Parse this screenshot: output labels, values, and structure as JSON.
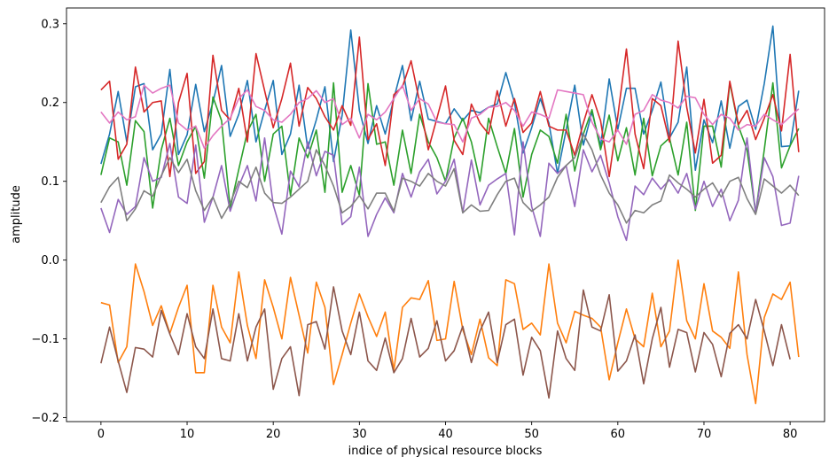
{
  "chart_data": {
    "type": "line",
    "title": "",
    "xlabel": "indice of physical resource blocks",
    "ylabel": "amplitude",
    "xlim": [
      -4,
      84
    ],
    "ylim": [
      -0.205,
      0.32
    ],
    "xticks": [
      0,
      10,
      20,
      30,
      40,
      50,
      60,
      70,
      80
    ],
    "xtick_labels": [
      "0",
      "10",
      "20",
      "30",
      "40",
      "50",
      "60",
      "70",
      "80"
    ],
    "yticks": [
      -0.2,
      -0.1,
      0.0,
      0.1,
      0.2,
      0.3
    ],
    "ytick_labels": [
      "−0.2",
      "−0.1",
      "0.0",
      "0.1",
      "0.2",
      "0.3"
    ],
    "grid": false,
    "legend": false,
    "series": [
      {
        "color": "#1f77b4",
        "values": [
          0.122,
          0.16,
          0.214,
          0.15,
          0.22,
          0.224,
          0.14,
          0.16,
          0.242,
          0.134,
          0.159,
          0.223,
          0.163,
          0.2,
          0.247,
          0.157,
          0.185,
          0.228,
          0.15,
          0.19,
          0.228,
          0.134,
          0.16,
          0.222,
          0.142,
          0.178,
          0.22,
          0.125,
          0.184,
          0.292,
          0.19,
          0.148,
          0.196,
          0.16,
          0.205,
          0.247,
          0.177,
          0.227,
          0.179,
          0.176,
          0.173,
          0.192,
          0.177,
          0.19,
          0.187,
          0.194,
          0.198,
          0.238,
          0.2,
          0.136,
          0.168,
          0.205,
          0.174,
          0.11,
          0.165,
          0.222,
          0.146,
          0.188,
          0.145,
          0.23,
          0.166,
          0.218,
          0.218,
          0.16,
          0.19,
          0.226,
          0.155,
          0.175,
          0.245,
          0.114,
          0.178,
          0.149,
          0.202,
          0.142,
          0.195,
          0.203,
          0.166,
          0.224,
          0.297,
          0.144,
          0.145,
          0.215
        ]
      },
      {
        "color": "#ff7f0e",
        "values": [
          -0.054,
          -0.057,
          -0.13,
          -0.11,
          -0.005,
          -0.04,
          -0.083,
          -0.058,
          -0.093,
          -0.06,
          -0.032,
          -0.143,
          -0.143,
          -0.032,
          -0.085,
          -0.105,
          -0.015,
          -0.083,
          -0.125,
          -0.025,
          -0.06,
          -0.1,
          -0.022,
          -0.07,
          -0.118,
          -0.028,
          -0.06,
          -0.158,
          -0.12,
          -0.08,
          -0.043,
          -0.072,
          -0.097,
          -0.066,
          -0.14,
          -0.06,
          -0.048,
          -0.05,
          -0.026,
          -0.102,
          -0.1,
          -0.027,
          -0.088,
          -0.12,
          -0.075,
          -0.124,
          -0.134,
          -0.025,
          -0.03,
          -0.088,
          -0.08,
          -0.095,
          -0.005,
          -0.08,
          -0.105,
          -0.065,
          -0.07,
          -0.074,
          -0.085,
          -0.152,
          -0.105,
          -0.062,
          -0.1,
          -0.11,
          -0.042,
          -0.11,
          -0.09,
          0.0,
          -0.077,
          -0.1,
          -0.03,
          -0.09,
          -0.098,
          -0.112,
          -0.015,
          -0.12,
          -0.182,
          -0.073,
          -0.043,
          -0.05,
          -0.028,
          -0.123
        ]
      },
      {
        "color": "#2ca02c",
        "values": [
          0.108,
          0.155,
          0.15,
          0.095,
          0.177,
          0.163,
          0.066,
          0.14,
          0.18,
          0.12,
          0.15,
          0.17,
          0.104,
          0.207,
          0.177,
          0.066,
          0.115,
          0.163,
          0.185,
          0.1,
          0.16,
          0.17,
          0.082,
          0.155,
          0.13,
          0.165,
          0.086,
          0.225,
          0.086,
          0.12,
          0.082,
          0.224,
          0.147,
          0.15,
          0.095,
          0.165,
          0.11,
          0.185,
          0.15,
          0.13,
          0.1,
          0.155,
          0.18,
          0.15,
          0.1,
          0.18,
          0.144,
          0.11,
          0.167,
          0.08,
          0.134,
          0.165,
          0.157,
          0.123,
          0.185,
          0.113,
          0.16,
          0.191,
          0.14,
          0.184,
          0.126,
          0.168,
          0.108,
          0.18,
          0.107,
          0.145,
          0.155,
          0.108,
          0.175,
          0.063,
          0.17,
          0.17,
          0.118,
          0.225,
          0.17,
          0.14,
          0.06,
          0.14,
          0.225,
          0.117,
          0.145,
          0.167
        ]
      },
      {
        "color": "#d62728",
        "values": [
          0.216,
          0.227,
          0.128,
          0.147,
          0.245,
          0.188,
          0.2,
          0.202,
          0.106,
          0.2,
          0.237,
          0.11,
          0.125,
          0.26,
          0.19,
          0.178,
          0.218,
          0.15,
          0.262,
          0.215,
          0.168,
          0.205,
          0.25,
          0.17,
          0.219,
          0.205,
          0.182,
          0.165,
          0.196,
          0.171,
          0.283,
          0.153,
          0.173,
          0.12,
          0.21,
          0.22,
          0.253,
          0.2,
          0.14,
          0.18,
          0.221,
          0.152,
          0.134,
          0.198,
          0.174,
          0.16,
          0.215,
          0.17,
          0.205,
          0.162,
          0.174,
          0.214,
          0.17,
          0.165,
          0.165,
          0.133,
          0.174,
          0.21,
          0.177,
          0.106,
          0.183,
          0.268,
          0.16,
          0.116,
          0.205,
          0.196,
          0.15,
          0.278,
          0.194,
          0.136,
          0.204,
          0.123,
          0.133,
          0.227,
          0.172,
          0.19,
          0.153,
          0.18,
          0.21,
          0.164,
          0.261,
          0.137
        ]
      },
      {
        "color": "#9467bd",
        "values": [
          0.066,
          0.035,
          0.077,
          0.058,
          0.068,
          0.13,
          0.1,
          0.105,
          0.148,
          0.08,
          0.072,
          0.146,
          0.048,
          0.08,
          0.12,
          0.062,
          0.094,
          0.12,
          0.075,
          0.155,
          0.07,
          0.033,
          0.113,
          0.093,
          0.15,
          0.107,
          0.138,
          0.133,
          0.045,
          0.055,
          0.118,
          0.03,
          0.058,
          0.079,
          0.06,
          0.11,
          0.08,
          0.112,
          0.128,
          0.084,
          0.1,
          0.128,
          0.06,
          0.127,
          0.07,
          0.095,
          0.103,
          0.11,
          0.032,
          0.15,
          0.068,
          0.03,
          0.123,
          0.11,
          0.12,
          0.068,
          0.14,
          0.112,
          0.133,
          0.098,
          0.055,
          0.025,
          0.094,
          0.083,
          0.104,
          0.09,
          0.102,
          0.085,
          0.11,
          0.065,
          0.1,
          0.068,
          0.09,
          0.05,
          0.076,
          0.155,
          0.06,
          0.13,
          0.106,
          0.044,
          0.047,
          0.107
        ]
      },
      {
        "color": "#8c564b",
        "values": [
          -0.131,
          -0.085,
          -0.128,
          -0.168,
          -0.111,
          -0.113,
          -0.123,
          -0.064,
          -0.094,
          -0.12,
          -0.068,
          -0.11,
          -0.125,
          -0.062,
          -0.125,
          -0.128,
          -0.068,
          -0.128,
          -0.085,
          -0.062,
          -0.164,
          -0.125,
          -0.11,
          -0.172,
          -0.082,
          -0.078,
          -0.113,
          -0.034,
          -0.09,
          -0.12,
          -0.066,
          -0.128,
          -0.14,
          -0.099,
          -0.143,
          -0.125,
          -0.074,
          -0.123,
          -0.112,
          -0.077,
          -0.128,
          -0.115,
          -0.084,
          -0.13,
          -0.09,
          -0.066,
          -0.13,
          -0.082,
          -0.075,
          -0.146,
          -0.098,
          -0.115,
          -0.175,
          -0.09,
          -0.125,
          -0.14,
          -0.038,
          -0.085,
          -0.09,
          -0.044,
          -0.141,
          -0.128,
          -0.095,
          -0.157,
          -0.1,
          -0.06,
          -0.136,
          -0.088,
          -0.092,
          -0.142,
          -0.092,
          -0.107,
          -0.148,
          -0.093,
          -0.082,
          -0.1,
          -0.05,
          -0.09,
          -0.134,
          -0.082,
          -0.126
        ]
      },
      {
        "color": "#e377c2",
        "values": [
          0.188,
          0.174,
          0.188,
          0.178,
          0.182,
          0.222,
          0.212,
          0.218,
          0.222,
          0.174,
          0.165,
          0.17,
          0.142,
          0.158,
          0.17,
          0.18,
          0.205,
          0.216,
          0.195,
          0.19,
          0.178,
          0.175,
          0.185,
          0.2,
          0.205,
          0.215,
          0.2,
          0.205,
          0.172,
          0.18,
          0.155,
          0.185,
          0.178,
          0.188,
          0.205,
          0.222,
          0.19,
          0.205,
          0.198,
          0.175,
          0.173,
          0.172,
          0.15,
          0.18,
          0.185,
          0.194,
          0.195,
          0.2,
          0.19,
          0.17,
          0.188,
          0.185,
          0.18,
          0.216,
          0.214,
          0.212,
          0.21,
          0.175,
          0.154,
          0.15,
          0.165,
          0.147,
          0.185,
          0.19,
          0.21,
          0.203,
          0.2,
          0.193,
          0.208,
          0.206,
          0.185,
          0.172,
          0.185,
          0.18,
          0.165,
          0.172,
          0.17,
          0.185,
          0.178,
          0.172,
          0.182,
          0.192
        ]
      },
      {
        "color": "#7f7f7f",
        "values": [
          0.073,
          0.093,
          0.105,
          0.05,
          0.065,
          0.088,
          0.081,
          0.107,
          0.13,
          0.111,
          0.128,
          0.088,
          0.063,
          0.08,
          0.053,
          0.072,
          0.1,
          0.092,
          0.118,
          0.085,
          0.073,
          0.072,
          0.08,
          0.09,
          0.1,
          0.14,
          0.12,
          0.094,
          0.06,
          0.068,
          0.082,
          0.065,
          0.085,
          0.085,
          0.062,
          0.104,
          0.1,
          0.094,
          0.11,
          0.1,
          0.094,
          0.116,
          0.06,
          0.07,
          0.062,
          0.063,
          0.083,
          0.1,
          0.104,
          0.073,
          0.062,
          0.07,
          0.08,
          0.105,
          0.12,
          0.13,
          0.16,
          0.14,
          0.108,
          0.085,
          0.07,
          0.047,
          0.063,
          0.06,
          0.07,
          0.075,
          0.108,
          0.098,
          0.09,
          0.08,
          0.09,
          0.098,
          0.08,
          0.1,
          0.105,
          0.078,
          0.058,
          0.103,
          0.094,
          0.085,
          0.095,
          0.082
        ]
      }
    ]
  }
}
